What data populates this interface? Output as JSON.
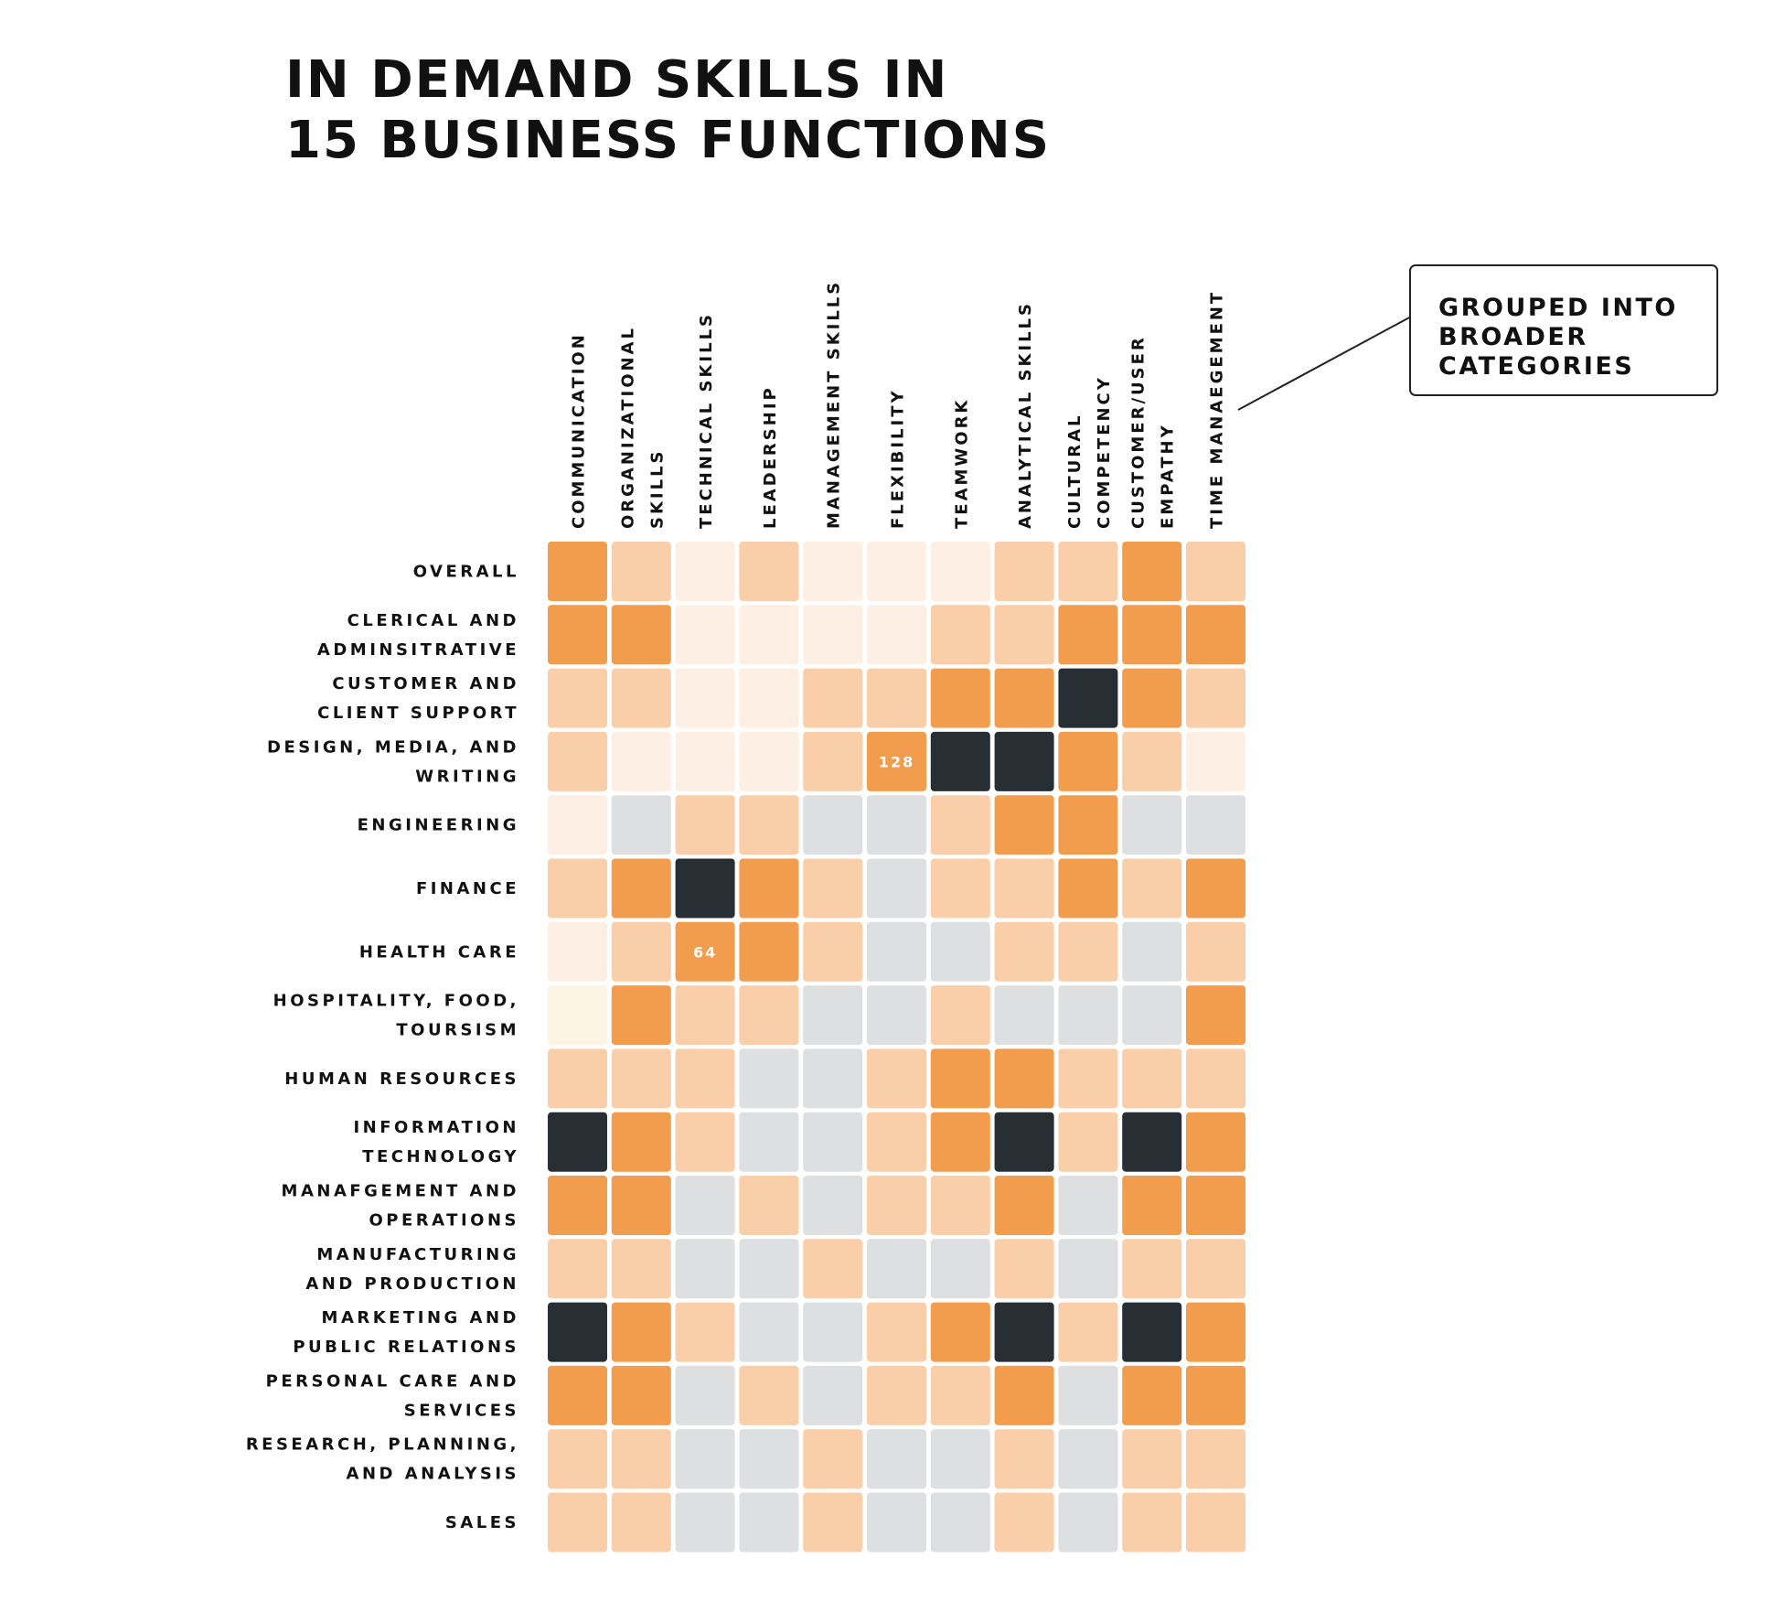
{
  "chart_data": {
    "type": "heatmap",
    "title": [
      "IN DEMAND SKILLS IN",
      "15 BUSINESS FUNCTIONS"
    ],
    "columns": [
      [
        "COMMUNICATION"
      ],
      [
        "ORGANIZATIONAL",
        "SKILLS"
      ],
      [
        "TECHNICAL SKILLS"
      ],
      [
        "LEADERSHIP"
      ],
      [
        "MANAGEMENT SKILLS"
      ],
      [
        "FLEXIBILITY"
      ],
      [
        "TEAMWORK"
      ],
      [
        "ANALYTICAL SKILLS"
      ],
      [
        "CULTURAL",
        "COMPETENCY"
      ],
      [
        "CUSTOMER/USER",
        "EMPATHY"
      ],
      [
        "TIME MANAEGEMENT"
      ]
    ],
    "rows": [
      [
        "OVERALL"
      ],
      [
        "CLERICAL AND",
        "ADMINSITRATIVE"
      ],
      [
        "CUSTOMER AND",
        "CLIENT SUPPORT"
      ],
      [
        "DESIGN, MEDIA, AND",
        "WRITING"
      ],
      [
        "ENGINEERING"
      ],
      [
        "FINANCE"
      ],
      [
        "HEALTH CARE"
      ],
      [
        "HOSPITALITY, FOOD,",
        "TOURSISM"
      ],
      [
        "HUMAN RESOURCES"
      ],
      [
        "INFORMATION",
        "TECHNOLOGY"
      ],
      [
        "MANAFGEMENT AND",
        "OPERATIONS"
      ],
      [
        "MANUFACTURING",
        "AND PRODUCTION"
      ],
      [
        "MARKETING AND",
        "PUBLIC RELATIONS"
      ],
      [
        "PERSONAL CARE AND",
        "SERVICES"
      ],
      [
        "RESEARCH, PLANNING,",
        "AND ANALYSIS"
      ],
      [
        "SALES"
      ]
    ],
    "levels": [
      "none",
      "very-low",
      "low",
      "medium",
      "high",
      "highest"
    ],
    "level_colors": {
      "none": "#dedfe1",
      "very-low": "#fdf5e4",
      "low": "#fdefe3",
      "medium": "#f9cea8",
      "high": "#f29c4d",
      "highest": "#272f35"
    },
    "values": [
      [
        4,
        3,
        2,
        3,
        2,
        2,
        2,
        3,
        3,
        4,
        3
      ],
      [
        4,
        4,
        2,
        2,
        2,
        2,
        3,
        3,
        4,
        4,
        4
      ],
      [
        3,
        3,
        2,
        2,
        3,
        3,
        4,
        4,
        5,
        4,
        3
      ],
      [
        3,
        2,
        2,
        2,
        3,
        4,
        5,
        5,
        4,
        3,
        2
      ],
      [
        2,
        0,
        3,
        3,
        0,
        0,
        3,
        4,
        4,
        0,
        0
      ],
      [
        3,
        4,
        5,
        4,
        3,
        0,
        3,
        3,
        4,
        3,
        4
      ],
      [
        2,
        3,
        4,
        4,
        3,
        0,
        0,
        3,
        3,
        0,
        3
      ],
      [
        1,
        4,
        3,
        3,
        0,
        0,
        3,
        0,
        0,
        0,
        4
      ],
      [
        3,
        3,
        3,
        0,
        0,
        3,
        4,
        4,
        3,
        3,
        3
      ],
      [
        5,
        4,
        3,
        0,
        0,
        3,
        4,
        5,
        3,
        5,
        4
      ],
      [
        4,
        4,
        0,
        3,
        0,
        3,
        3,
        4,
        0,
        4,
        4
      ],
      [
        3,
        3,
        0,
        0,
        3,
        0,
        0,
        3,
        0,
        3,
        3
      ],
      [
        5,
        4,
        3,
        0,
        0,
        3,
        4,
        5,
        3,
        5,
        4
      ],
      [
        4,
        4,
        0,
        3,
        0,
        3,
        3,
        4,
        0,
        4,
        4
      ],
      [
        3,
        3,
        0,
        0,
        3,
        0,
        0,
        3,
        0,
        3,
        3
      ],
      [
        3,
        3,
        0,
        0,
        3,
        0,
        0,
        3,
        0,
        3,
        3
      ]
    ],
    "cell_annotations": [
      {
        "row": 3,
        "col": 5,
        "text": "128"
      },
      {
        "row": 6,
        "col": 2,
        "text": "64"
      }
    ]
  },
  "callout": {
    "lines": [
      "GROUPED INTO",
      "BROADER",
      "CATEGORIES"
    ],
    "border_color": "#222222"
  }
}
